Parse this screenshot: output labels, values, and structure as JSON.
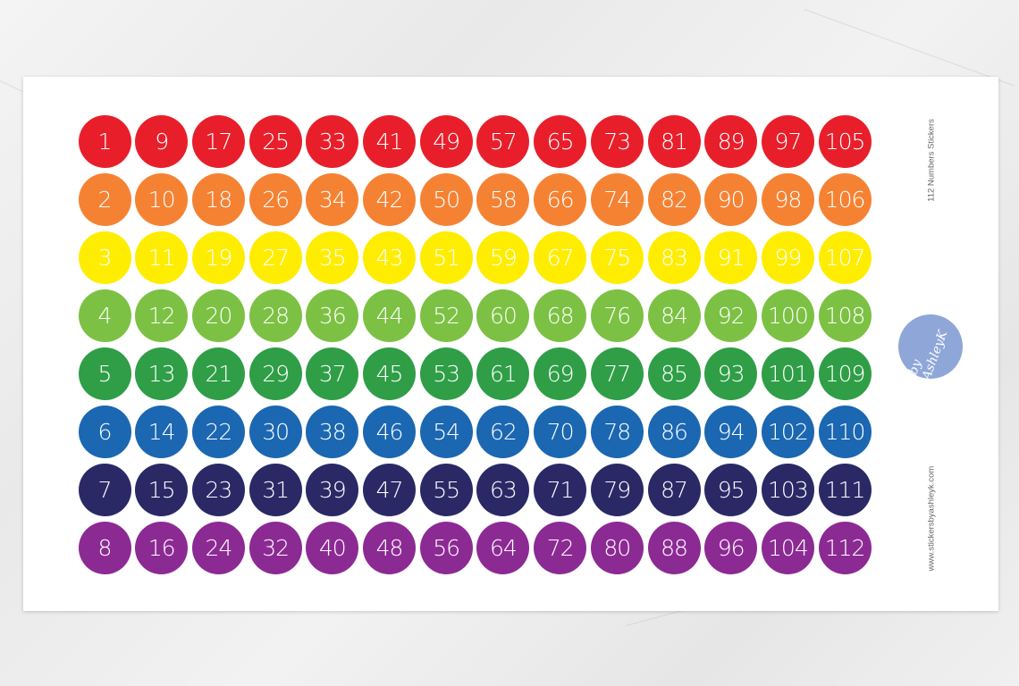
{
  "sheet": {
    "title": "112 Numbers Stickers",
    "website": "www.stickersbyashleyk.com",
    "logo_text": "by AshleyK",
    "logo_color": "#8fa6d8"
  },
  "rows": [
    {
      "color": "#e81f2b",
      "numbers": [
        1,
        9,
        17,
        25,
        33,
        41,
        49,
        57,
        65,
        73,
        81,
        89,
        97,
        105
      ]
    },
    {
      "color": "#f58233",
      "numbers": [
        2,
        10,
        18,
        26,
        34,
        42,
        50,
        58,
        66,
        74,
        82,
        90,
        98,
        106
      ]
    },
    {
      "color": "#ffed00",
      "numbers": [
        3,
        11,
        19,
        27,
        35,
        43,
        51,
        59,
        67,
        75,
        83,
        91,
        99,
        107
      ]
    },
    {
      "color": "#7cc143",
      "numbers": [
        4,
        12,
        20,
        28,
        36,
        44,
        52,
        60,
        68,
        76,
        84,
        92,
        100,
        108
      ]
    },
    {
      "color": "#2f9e47",
      "numbers": [
        5,
        13,
        21,
        29,
        37,
        45,
        53,
        61,
        69,
        77,
        85,
        93,
        101,
        109
      ]
    },
    {
      "color": "#1b67b2",
      "numbers": [
        6,
        14,
        22,
        30,
        38,
        46,
        54,
        62,
        70,
        78,
        86,
        94,
        102,
        110
      ]
    },
    {
      "color": "#2a2966",
      "numbers": [
        7,
        15,
        23,
        31,
        39,
        47,
        55,
        63,
        71,
        79,
        87,
        95,
        103,
        111
      ]
    },
    {
      "color": "#8c2a94",
      "numbers": [
        8,
        16,
        24,
        32,
        40,
        48,
        56,
        64,
        72,
        80,
        88,
        96,
        104,
        112
      ]
    }
  ]
}
